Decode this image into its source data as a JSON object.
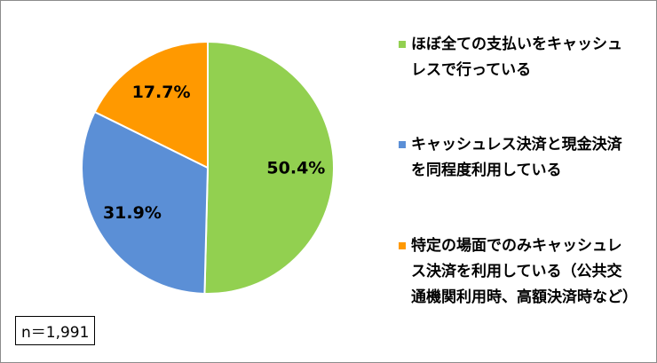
{
  "chart_data": {
    "type": "pie",
    "categories": [
      "ほぼ全ての支払いをキャッシュレスで行っている",
      "キャッシュレス決済と現金決済を同程度利用している",
      "特定の場面でのみキャッシュレス決済を利用している（公共交通機関利用時、高額決済時など）"
    ],
    "values": [
      50.4,
      31.9,
      17.7
    ],
    "value_labels": [
      "50.4%",
      "31.9%",
      "17.7%"
    ],
    "colors": [
      "#92d050",
      "#5b8fd6",
      "#ff9900"
    ],
    "legend": "right",
    "note": "n＝1,991"
  }
}
